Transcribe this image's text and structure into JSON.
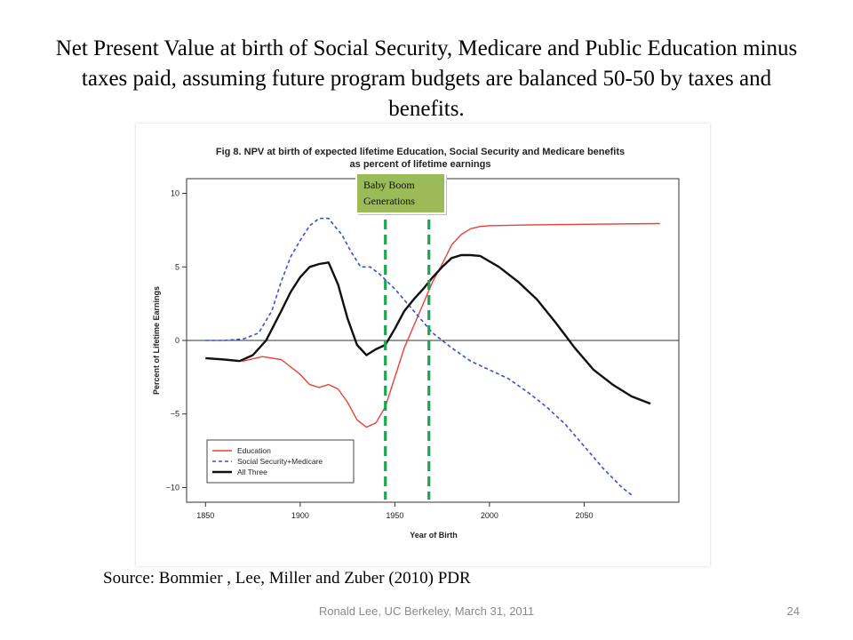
{
  "slide": {
    "title": "Net Present Value at birth of Social Security, Medicare and Public Education minus taxes paid, assuming future program budgets are balanced 50-50 by taxes and benefits.",
    "source": "Source: Bommier , Lee, Miller and Zuber  (2010) PDR",
    "footer": "Ronald Lee, UC Berkeley, March 31, 2011",
    "page_number": "24"
  },
  "callout": {
    "line1": "Baby Boom",
    "line2": "Generations",
    "fill": "#9bbb59",
    "marker_color": "#1aa550",
    "markers_x": [
      1945,
      1968
    ]
  },
  "chart_data": {
    "type": "line",
    "title_line1": "Fig 8. NPV at birth of expected lifetime Education, Social Security and Medicare benefits",
    "title_line2": "as percent of lifetime earnings",
    "xlabel": "Year of Birth",
    "ylabel": "Percent of Lifetime Earnings",
    "xlim": [
      1840,
      2100
    ],
    "ylim": [
      -11,
      11
    ],
    "xticks": [
      1850,
      1900,
      1950,
      2000,
      2050
    ],
    "yticks": [
      10,
      5,
      0,
      -5,
      -10
    ],
    "zero_line": true,
    "grid": false,
    "legend_position": "bottom-left",
    "series": [
      {
        "name": "Education",
        "color": "#e8403a",
        "dash": "solid",
        "points": [
          [
            1850,
            -1.2
          ],
          [
            1860,
            -1.3
          ],
          [
            1870,
            -1.4
          ],
          [
            1880,
            -1.1
          ],
          [
            1890,
            -1.3
          ],
          [
            1900,
            -2.3
          ],
          [
            1905,
            -3.0
          ],
          [
            1910,
            -3.2
          ],
          [
            1915,
            -3.0
          ],
          [
            1920,
            -3.3
          ],
          [
            1925,
            -4.2
          ],
          [
            1930,
            -5.4
          ],
          [
            1935,
            -5.9
          ],
          [
            1940,
            -5.6
          ],
          [
            1945,
            -4.5
          ],
          [
            1950,
            -2.5
          ],
          [
            1955,
            -0.5
          ],
          [
            1960,
            1.0
          ],
          [
            1965,
            2.5
          ],
          [
            1970,
            4.0
          ],
          [
            1975,
            5.2
          ],
          [
            1980,
            6.5
          ],
          [
            1985,
            7.2
          ],
          [
            1990,
            7.6
          ],
          [
            1995,
            7.75
          ],
          [
            2000,
            7.8
          ],
          [
            2020,
            7.85
          ],
          [
            2050,
            7.9
          ],
          [
            2090,
            7.95
          ]
        ]
      },
      {
        "name": "Social Security+Medicare",
        "color": "#3b4fd6",
        "dash": "4,3",
        "points": [
          [
            1850,
            0
          ],
          [
            1860,
            0
          ],
          [
            1870,
            0.1
          ],
          [
            1878,
            0.5
          ],
          [
            1885,
            2.0
          ],
          [
            1890,
            4.0
          ],
          [
            1895,
            5.7
          ],
          [
            1900,
            6.8
          ],
          [
            1905,
            7.8
          ],
          [
            1910,
            8.3
          ],
          [
            1915,
            8.3
          ],
          [
            1918,
            7.8
          ],
          [
            1922,
            7.2
          ],
          [
            1927,
            6.0
          ],
          [
            1932,
            5.0
          ],
          [
            1937,
            5.0
          ],
          [
            1942,
            4.5
          ],
          [
            1950,
            3.5
          ],
          [
            1960,
            2.0
          ],
          [
            1970,
            0.5
          ],
          [
            1980,
            -0.5
          ],
          [
            1990,
            -1.4
          ],
          [
            2000,
            -2.0
          ],
          [
            2010,
            -2.6
          ],
          [
            2020,
            -3.5
          ],
          [
            2030,
            -4.5
          ],
          [
            2040,
            -5.7
          ],
          [
            2050,
            -7.2
          ],
          [
            2060,
            -8.7
          ],
          [
            2070,
            -10.0
          ],
          [
            2076,
            -10.6
          ]
        ]
      },
      {
        "name": "All Three",
        "color": "#111111",
        "dash": "solid",
        "points": [
          [
            1850,
            -1.2
          ],
          [
            1860,
            -1.3
          ],
          [
            1868,
            -1.4
          ],
          [
            1875,
            -1.0
          ],
          [
            1882,
            0.0
          ],
          [
            1890,
            2.0
          ],
          [
            1895,
            3.3
          ],
          [
            1900,
            4.3
          ],
          [
            1905,
            5.0
          ],
          [
            1910,
            5.2
          ],
          [
            1915,
            5.3
          ],
          [
            1920,
            3.8
          ],
          [
            1925,
            1.5
          ],
          [
            1930,
            -0.3
          ],
          [
            1935,
            -1.0
          ],
          [
            1940,
            -0.6
          ],
          [
            1945,
            -0.3
          ],
          [
            1950,
            0.8
          ],
          [
            1955,
            2.0
          ],
          [
            1960,
            2.8
          ],
          [
            1965,
            3.5
          ],
          [
            1970,
            4.3
          ],
          [
            1975,
            5.0
          ],
          [
            1980,
            5.6
          ],
          [
            1985,
            5.8
          ],
          [
            1990,
            5.8
          ],
          [
            1995,
            5.75
          ],
          [
            2005,
            5.0
          ],
          [
            2015,
            4.0
          ],
          [
            2025,
            2.8
          ],
          [
            2035,
            1.2
          ],
          [
            2045,
            -0.5
          ],
          [
            2055,
            -2.0
          ],
          [
            2065,
            -3.0
          ],
          [
            2075,
            -3.8
          ],
          [
            2085,
            -4.3
          ]
        ]
      }
    ]
  }
}
